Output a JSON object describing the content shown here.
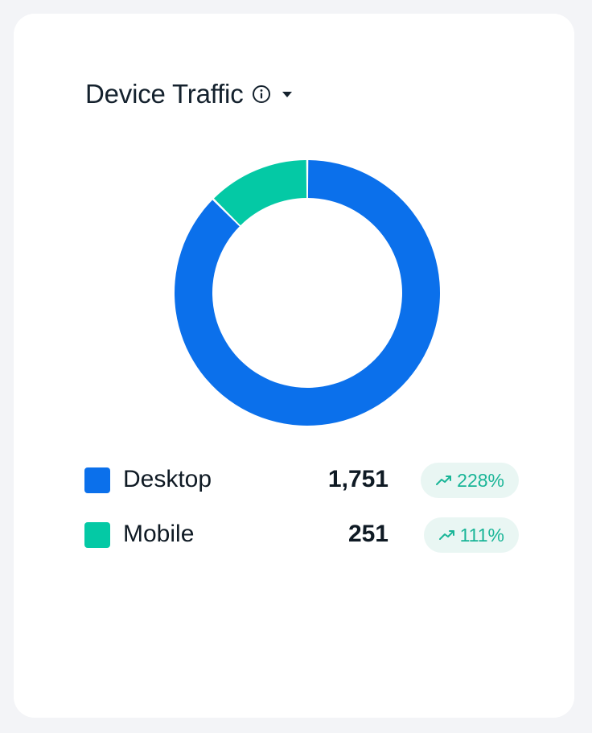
{
  "widget": {
    "title": "Device Traffic",
    "info_icon": "info-circle-icon",
    "dropdown_icon": "caret-down-icon"
  },
  "chart_data": {
    "type": "pie",
    "variant": "donut",
    "categories": [
      "Desktop",
      "Mobile"
    ],
    "values": [
      1751,
      251
    ],
    "colors": [
      "#0b70eb",
      "#04c9a5"
    ]
  },
  "legend": [
    {
      "label": "Desktop",
      "value": "1,751",
      "change": "228%",
      "color": "#0b70eb",
      "trend_icon": "trending-up-icon"
    },
    {
      "label": "Mobile",
      "value": "251",
      "change": "111%",
      "color": "#04c9a5",
      "trend_icon": "trending-up-icon"
    }
  ]
}
